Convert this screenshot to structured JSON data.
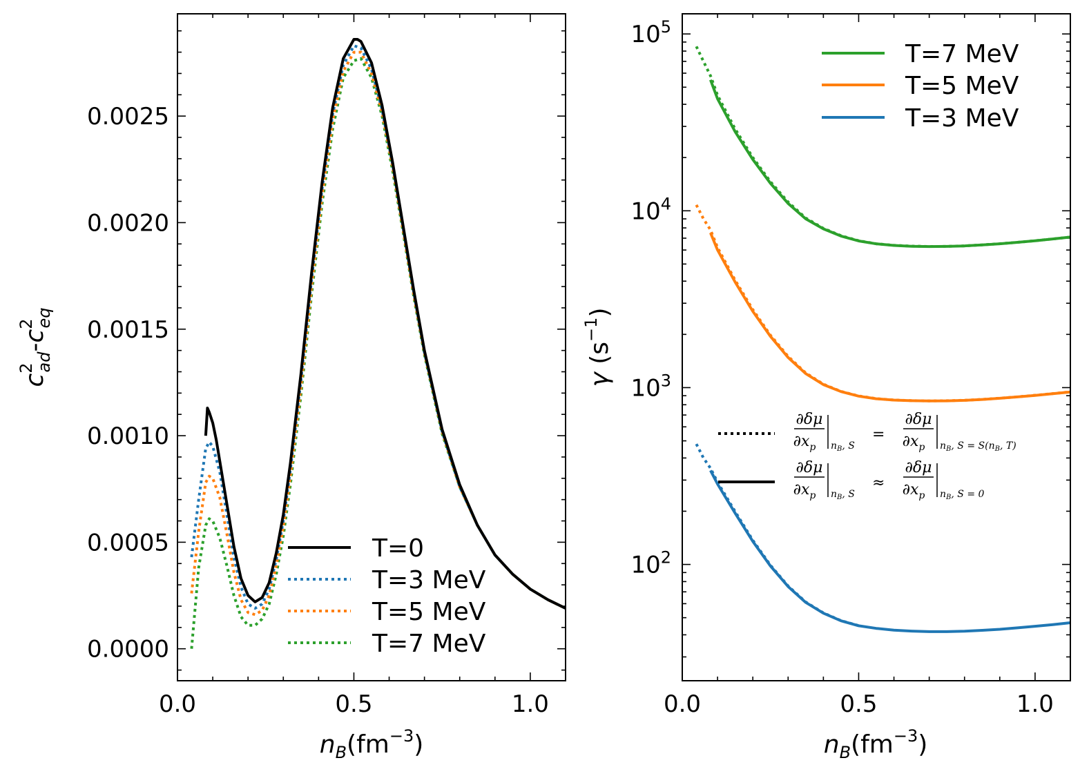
{
  "chart_data": [
    {
      "type": "line",
      "panel": "left",
      "title": "",
      "xlabel": "n_B(fm^-3)",
      "xlabel_parts": {
        "var": "n",
        "sub": "B",
        "unit": "(fm",
        "exp": "−3",
        "close": ")"
      },
      "ylabel": "c²_ad-c²_eq",
      "ylabel_parts": {
        "a": "c",
        "a_sup": "2",
        "a_sub": "ad",
        "dash": "-",
        "b": "c",
        "b_sup": "2",
        "b_sub": "eq"
      },
      "xlim": [
        0.0,
        1.1
      ],
      "ylim": [
        -0.00015,
        0.00298
      ],
      "xticks": [
        0.0,
        0.5,
        1.0
      ],
      "xtick_labels": [
        "0.0",
        "0.5",
        "1.0"
      ],
      "yticks": [
        0.0,
        0.0005,
        0.001,
        0.0015,
        0.002,
        0.0025
      ],
      "ytick_labels": [
        "0.0000",
        "0.0005",
        "0.0010",
        "0.0015",
        "0.0020",
        "0.0025"
      ],
      "legend": {
        "position": "lower-center",
        "entries": [
          "T=0",
          "T=3 MeV",
          "T=5 MeV",
          "T=7 MeV"
        ]
      },
      "series": [
        {
          "name": "T=0",
          "color": "#000000",
          "style": "solid",
          "x": [
            0.08,
            0.085,
            0.09,
            0.1,
            0.11,
            0.12,
            0.14,
            0.16,
            0.18,
            0.2,
            0.22,
            0.24,
            0.26,
            0.28,
            0.3,
            0.32,
            0.35,
            0.38,
            0.41,
            0.44,
            0.47,
            0.5,
            0.51,
            0.52,
            0.55,
            0.58,
            0.61,
            0.64,
            0.67,
            0.7,
            0.75,
            0.8,
            0.85,
            0.9,
            0.95,
            1.0,
            1.05,
            1.1
          ],
          "y": [
            0.001,
            0.00113,
            0.00111,
            0.00106,
            0.00098,
            0.00088,
            0.00068,
            0.00048,
            0.00033,
            0.00025,
            0.00022,
            0.00024,
            0.00031,
            0.00045,
            0.00063,
            0.00087,
            0.00129,
            0.00176,
            0.00219,
            0.00254,
            0.00277,
            0.00286,
            0.00286,
            0.00285,
            0.00275,
            0.00255,
            0.00228,
            0.00198,
            0.00168,
            0.0014,
            0.00103,
            0.00077,
            0.00058,
            0.00044,
            0.00035,
            0.00028,
            0.00023,
            0.00019
          ]
        },
        {
          "name": "T=3 MeV",
          "color": "#1f77b4",
          "style": "dotted",
          "x": [
            0.04,
            0.06,
            0.08,
            0.09,
            0.1,
            0.12,
            0.14,
            0.16,
            0.18,
            0.2,
            0.22,
            0.24,
            0.26,
            0.28,
            0.3,
            0.32,
            0.35,
            0.38,
            0.41,
            0.44,
            0.47,
            0.5,
            0.52,
            0.55,
            0.58,
            0.61,
            0.64,
            0.67,
            0.7,
            0.75,
            0.8,
            0.85,
            0.9,
            0.95,
            1.0,
            1.05,
            1.1
          ],
          "y": [
            0.00043,
            0.0007,
            0.00094,
            0.00097,
            0.00095,
            0.00083,
            0.00063,
            0.00043,
            0.00029,
            0.00021,
            0.00019,
            0.00021,
            0.00028,
            0.00042,
            0.0006,
            0.00084,
            0.00126,
            0.00173,
            0.00216,
            0.00251,
            0.00274,
            0.00283,
            0.00282,
            0.00272,
            0.00253,
            0.00227,
            0.00197,
            0.00167,
            0.00139,
            0.00102,
            0.00076,
            0.00058,
            0.00044,
            0.00035,
            0.00028,
            0.00023,
            0.00019
          ]
        },
        {
          "name": "T=5 MeV",
          "color": "#ff7f0e",
          "style": "dotted",
          "x": [
            0.04,
            0.06,
            0.08,
            0.09,
            0.1,
            0.12,
            0.14,
            0.16,
            0.18,
            0.2,
            0.22,
            0.24,
            0.26,
            0.28,
            0.3,
            0.32,
            0.35,
            0.38,
            0.41,
            0.44,
            0.47,
            0.5,
            0.52,
            0.55,
            0.58,
            0.61,
            0.64,
            0.67,
            0.7,
            0.75,
            0.8,
            0.85,
            0.9,
            0.95,
            1.0,
            1.05,
            1.1
          ],
          "y": [
            0.00026,
            0.00055,
            0.00078,
            0.00081,
            0.0008,
            0.00071,
            0.00054,
            0.00036,
            0.00023,
            0.00017,
            0.00016,
            0.00018,
            0.00025,
            0.00039,
            0.00057,
            0.00081,
            0.00123,
            0.0017,
            0.00213,
            0.00248,
            0.00271,
            0.0028,
            0.0028,
            0.0027,
            0.00252,
            0.00226,
            0.00196,
            0.00166,
            0.00139,
            0.00102,
            0.00076,
            0.00058,
            0.00044,
            0.00035,
            0.00028,
            0.00023,
            0.00019
          ]
        },
        {
          "name": "T=7 MeV",
          "color": "#2ca02c",
          "style": "dotted",
          "x": [
            0.04,
            0.06,
            0.08,
            0.09,
            0.1,
            0.12,
            0.14,
            0.16,
            0.18,
            0.2,
            0.22,
            0.24,
            0.26,
            0.28,
            0.3,
            0.32,
            0.35,
            0.38,
            0.41,
            0.44,
            0.47,
            0.5,
            0.52,
            0.55,
            0.58,
            0.61,
            0.64,
            0.67,
            0.7,
            0.75,
            0.8,
            0.85,
            0.9,
            0.95,
            1.0,
            1.05,
            1.1
          ],
          "y": [
            0.0,
            0.00038,
            0.00058,
            0.00061,
            0.0006,
            0.00052,
            0.00039,
            0.00025,
            0.00015,
            0.00011,
            0.00011,
            0.00014,
            0.00021,
            0.00035,
            0.00053,
            0.00077,
            0.00119,
            0.00166,
            0.00209,
            0.00244,
            0.00268,
            0.00276,
            0.00277,
            0.00268,
            0.0025,
            0.00224,
            0.00195,
            0.00165,
            0.00138,
            0.00101,
            0.00076,
            0.00058,
            0.00044,
            0.00035,
            0.00028,
            0.00023,
            0.00019
          ]
        }
      ]
    },
    {
      "type": "line",
      "panel": "right",
      "title": "",
      "xlabel": "n_B(fm^-3)",
      "xlabel_parts": {
        "var": "n",
        "sub": "B",
        "unit": "(fm",
        "exp": "−3",
        "close": ")"
      },
      "ylabel": "γ (s^-1)",
      "ylabel_parts": {
        "var": "γ",
        "unit": " (s",
        "exp": "−1",
        "close": ")"
      },
      "yscale": "log",
      "xlim": [
        0.0,
        1.1
      ],
      "ylim": [
        22,
        130000
      ],
      "xticks": [
        0.0,
        0.5,
        1.0
      ],
      "xtick_labels": [
        "0.0",
        "0.5",
        "1.0"
      ],
      "yticks": [
        100,
        1000,
        10000,
        100000
      ],
      "ytick_labels": [
        {
          "base": "10",
          "exp": "2"
        },
        {
          "base": "10",
          "exp": "3"
        },
        {
          "base": "10",
          "exp": "4"
        },
        {
          "base": "10",
          "exp": "5"
        }
      ],
      "legend": {
        "position": "top-right",
        "entries": [
          "T=7 MeV",
          "T=5 MeV",
          "T=3 MeV"
        ]
      },
      "style_legend": {
        "position": "center-right",
        "entries": [
          {
            "style": "dotted",
            "lhs": "∂δμ/∂x_p |n_B,S",
            "rel": "=",
            "rhs": "∂δμ/∂x_p |n_B,S=S(n_B,T)",
            "lhs_num": "∂δμ",
            "lhs_den": "∂x",
            "lhs_den_sub": "p",
            "lhs_eval": "n",
            "lhs_eval_sub": "B",
            "lhs_eval_rest": ", S",
            "rhs_num": "∂δμ",
            "rhs_den": "∂x",
            "rhs_den_sub": "p",
            "rhs_eval": "n",
            "rhs_eval_sub": "B",
            "rhs_eval_rest": ", S = S(n",
            "rhs_eval_sub2": "B",
            "rhs_eval_end": ", T)"
          },
          {
            "style": "solid",
            "lhs": "∂δμ/∂x_p |n_B,S",
            "rel": "≈",
            "rhs": "∂δμ/∂x_p |n_B,S=0",
            "lhs_num": "∂δμ",
            "lhs_den": "∂x",
            "lhs_den_sub": "p",
            "lhs_eval": "n",
            "lhs_eval_sub": "B",
            "lhs_eval_rest": ", S",
            "rhs_num": "∂δμ",
            "rhs_den": "∂x",
            "rhs_den_sub": "p",
            "rhs_eval": "n",
            "rhs_eval_sub": "B",
            "rhs_eval_rest": ", S = 0"
          }
        ]
      },
      "series": [
        {
          "name": "T=7 MeV",
          "color": "#2ca02c",
          "style": "solid",
          "x": [
            0.08,
            0.1,
            0.15,
            0.2,
            0.25,
            0.3,
            0.35,
            0.4,
            0.45,
            0.5,
            0.55,
            0.6,
            0.65,
            0.7,
            0.75,
            0.8,
            0.85,
            0.9,
            0.95,
            1.0,
            1.05,
            1.1
          ],
          "y": [
            55000,
            43000,
            28000,
            19500,
            14300,
            11000,
            9000,
            7900,
            7200,
            6750,
            6500,
            6370,
            6300,
            6280,
            6290,
            6330,
            6410,
            6510,
            6630,
            6770,
            6930,
            7100
          ]
        },
        {
          "name": "T=7 MeV dotted",
          "color": "#2ca02c",
          "style": "dotted",
          "x": [
            0.04,
            0.06,
            0.08,
            0.1,
            0.15,
            0.2,
            0.25,
            0.3,
            0.35,
            0.4,
            0.45,
            0.5,
            0.55,
            0.6,
            0.65,
            0.7,
            0.75,
            0.8,
            0.85,
            0.9,
            0.95,
            1.0,
            1.05,
            1.1
          ],
          "y": [
            85000,
            70000,
            58000,
            45000,
            29000,
            20000,
            14600,
            11200,
            9100,
            7950,
            7230,
            6770,
            6510,
            6380,
            6310,
            6285,
            6292,
            6332,
            6412,
            6512,
            6632,
            6772,
            6932,
            7102
          ]
        },
        {
          "name": "T=5 MeV",
          "color": "#ff7f0e",
          "style": "solid",
          "x": [
            0.08,
            0.1,
            0.15,
            0.2,
            0.25,
            0.3,
            0.35,
            0.4,
            0.45,
            0.5,
            0.55,
            0.6,
            0.65,
            0.7,
            0.75,
            0.8,
            0.85,
            0.9,
            0.95,
            1.0,
            1.05,
            1.1
          ],
          "y": [
            7500,
            6000,
            3950,
            2700,
            1950,
            1480,
            1200,
            1040,
            950,
            895,
            865,
            850,
            843,
            840,
            842,
            847,
            857,
            870,
            886,
            904,
            924,
            945
          ]
        },
        {
          "name": "T=5 MeV dotted",
          "color": "#ff7f0e",
          "style": "dotted",
          "x": [
            0.04,
            0.06,
            0.08,
            0.1,
            0.15,
            0.2,
            0.25,
            0.3,
            0.35,
            0.4,
            0.45,
            0.5,
            0.55,
            0.6,
            0.65,
            0.7,
            0.75,
            0.8,
            0.85,
            0.9,
            0.95,
            1.0,
            1.05,
            1.1
          ],
          "y": [
            10800,
            9000,
            7800,
            6200,
            4050,
            2760,
            1980,
            1500,
            1210,
            1045,
            952,
            897,
            866,
            851,
            844,
            841,
            843,
            848,
            858,
            871,
            887,
            905,
            925,
            946
          ]
        },
        {
          "name": "T=3 MeV",
          "color": "#1f77b4",
          "style": "solid",
          "x": [
            0.08,
            0.1,
            0.15,
            0.2,
            0.25,
            0.3,
            0.35,
            0.4,
            0.45,
            0.5,
            0.55,
            0.6,
            0.65,
            0.7,
            0.75,
            0.8,
            0.85,
            0.9,
            0.95,
            1.0,
            1.05,
            1.1
          ],
          "y": [
            340,
            285,
            195,
            135,
            98,
            75,
            61,
            53,
            48,
            45,
            43.5,
            42.5,
            42,
            41.7,
            41.7,
            41.9,
            42.4,
            43,
            43.8,
            44.7,
            45.7,
            46.8
          ]
        },
        {
          "name": "T=3 MeV dotted",
          "color": "#1f77b4",
          "style": "dotted",
          "x": [
            0.04,
            0.06,
            0.08,
            0.1,
            0.15,
            0.2,
            0.25,
            0.3,
            0.35,
            0.4,
            0.45,
            0.5
          ],
          "y": [
            480,
            400,
            350,
            292,
            199,
            137,
            99,
            75.5,
            61.3,
            53.2,
            48.1,
            45.1
          ]
        }
      ]
    }
  ]
}
